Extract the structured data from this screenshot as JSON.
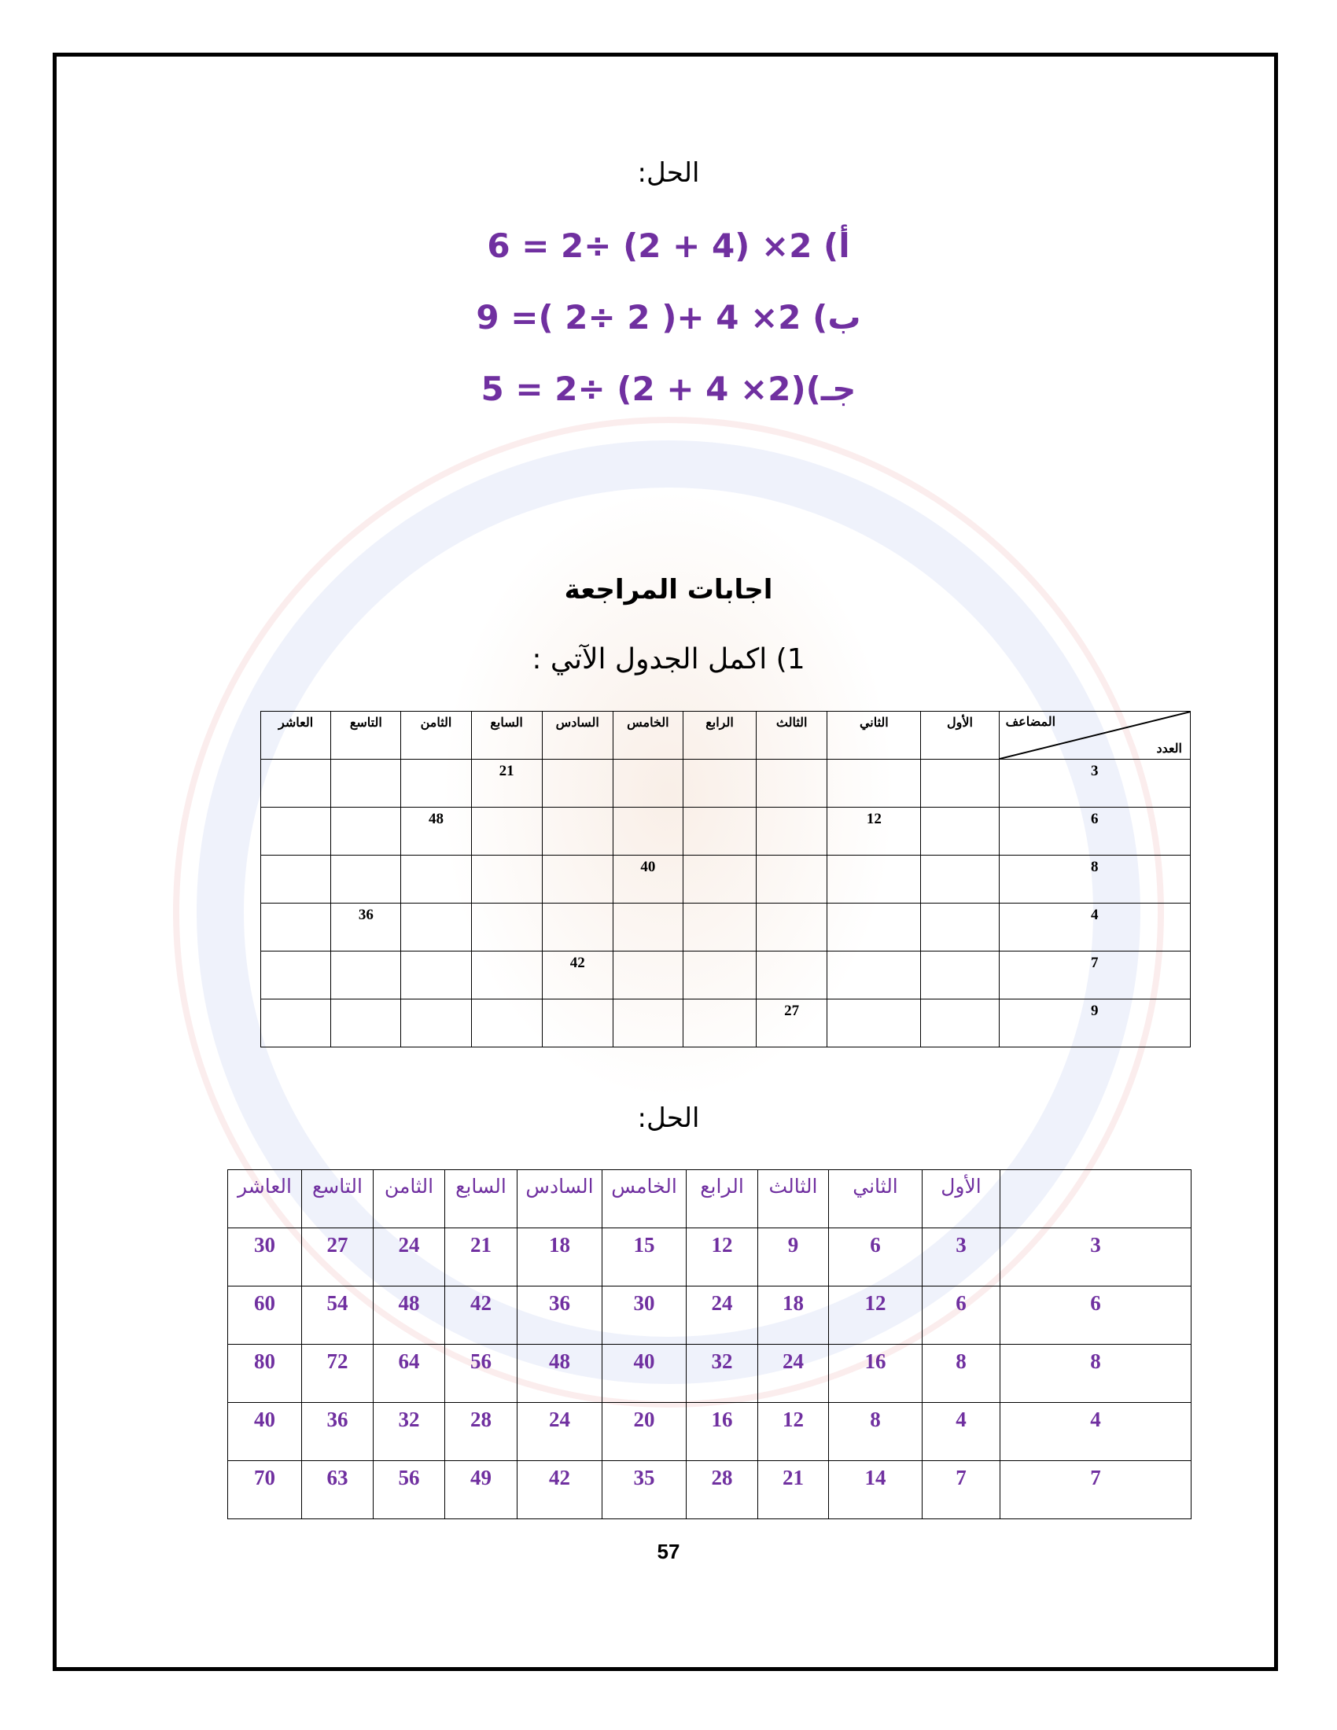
{
  "solution_label": "الحل:",
  "equations": [
    "أ) 2× (4 + 2) ÷2 = 6",
    "ب) 2× 4 +( 2 ÷2 )= 9",
    "جـ)(2× 4 + 2) ÷2 = 5"
  ],
  "review_title": "اجابات المراجعة",
  "question": "1) اكمل الجدول الآتي :",
  "table_headers": {
    "corner_multiple": "المضاعف",
    "corner_number": "العدد",
    "columns": [
      "الأول",
      "الثاني",
      "الثالث",
      "الرابع",
      "الخامس",
      "السادس",
      "السابع",
      "الثامن",
      "التاسع",
      "العاشر"
    ]
  },
  "exercise_table": {
    "rows": [
      {
        "number": "3",
        "cells": [
          "",
          "",
          "",
          "",
          "",
          "",
          "21",
          "",
          "",
          ""
        ]
      },
      {
        "number": "6",
        "cells": [
          "",
          "12",
          "",
          "",
          "",
          "",
          "",
          "48",
          "",
          ""
        ]
      },
      {
        "number": "8",
        "cells": [
          "",
          "",
          "",
          "",
          "40",
          "",
          "",
          "",
          "",
          ""
        ]
      },
      {
        "number": "4",
        "cells": [
          "",
          "",
          "",
          "",
          "",
          "",
          "",
          "",
          "36",
          ""
        ]
      },
      {
        "number": "7",
        "cells": [
          "",
          "",
          "",
          "",
          "",
          "42",
          "",
          "",
          "",
          ""
        ]
      },
      {
        "number": "9",
        "cells": [
          "",
          "",
          "27",
          "",
          "",
          "",
          "",
          "",
          "",
          ""
        ]
      }
    ]
  },
  "solution_label_2": "الحل:",
  "solution_table": {
    "rows": [
      {
        "number": "3",
        "cells": [
          "3",
          "6",
          "9",
          "12",
          "15",
          "18",
          "21",
          "24",
          "27",
          "30"
        ]
      },
      {
        "number": "6",
        "cells": [
          "6",
          "12",
          "18",
          "24",
          "30",
          "36",
          "42",
          "48",
          "54",
          "60"
        ]
      },
      {
        "number": "8",
        "cells": [
          "8",
          "16",
          "24",
          "32",
          "40",
          "48",
          "56",
          "64",
          "72",
          "80"
        ]
      },
      {
        "number": "4",
        "cells": [
          "4",
          "8",
          "12",
          "16",
          "20",
          "24",
          "28",
          "32",
          "36",
          "40"
        ]
      },
      {
        "number": "7",
        "cells": [
          "7",
          "14",
          "21",
          "28",
          "35",
          "42",
          "49",
          "56",
          "63",
          "70"
        ]
      }
    ]
  },
  "page_number": "57",
  "colors": {
    "accent": "#7030a0",
    "text": "#000000"
  }
}
